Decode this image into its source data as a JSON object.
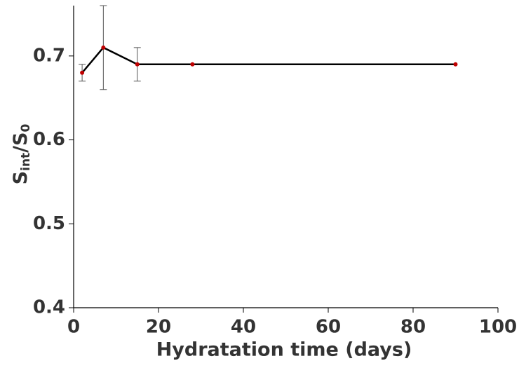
{
  "chart_data": {
    "type": "line",
    "xlabel": "Hydratation time (days)",
    "ylabel": {
      "parts": [
        "S",
        "int",
        "/S",
        "0"
      ]
    },
    "x": [
      2,
      7,
      15,
      28,
      90
    ],
    "series": [
      {
        "color": "#000000",
        "marker_color": "#c00000",
        "error_color": "#555555",
        "values": [
          0.68,
          0.71,
          0.69,
          0.69,
          0.69
        ],
        "errors": [
          0.01,
          0.05,
          0.02,
          null,
          null
        ]
      }
    ],
    "xlim": [
      0,
      100
    ],
    "xticks": [
      0,
      20,
      40,
      60,
      80,
      100
    ],
    "ylim": [
      0.4,
      0.76
    ],
    "yticks": [
      0.4,
      0.5,
      0.6,
      0.7
    ]
  }
}
